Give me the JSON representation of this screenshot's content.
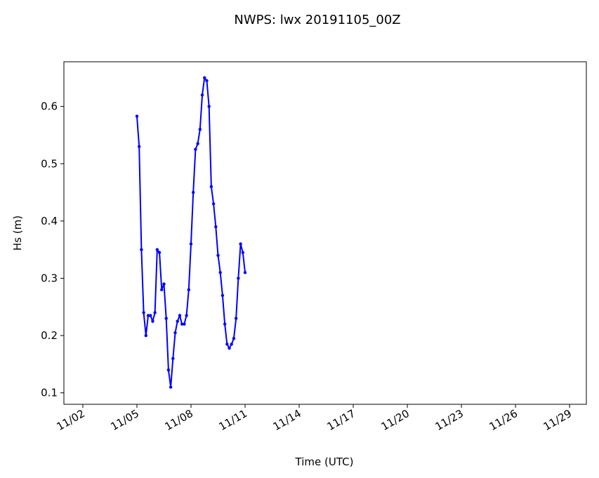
{
  "chart_data": {
    "type": "line",
    "title": "NWPS: lwx 20191105_00Z",
    "x_label": "Time (UTC)",
    "y_label": "Hs (m)",
    "x": [
      5.0,
      5.125,
      5.25,
      5.375,
      5.5,
      5.625,
      5.75,
      5.875,
      6.0,
      6.125,
      6.25,
      6.375,
      6.5,
      6.625,
      6.75,
      6.875,
      7.0,
      7.125,
      7.25,
      7.375,
      7.5,
      7.625,
      7.75,
      7.875,
      8.0,
      8.125,
      8.25,
      8.375,
      8.5,
      8.625,
      8.75,
      8.875,
      9.0,
      9.125,
      9.25,
      9.375,
      9.5,
      9.625,
      9.75,
      9.875,
      10.0,
      10.125,
      10.25,
      10.375,
      10.5,
      10.625,
      10.75,
      10.875,
      11.0
    ],
    "series": [
      {
        "name": "Hs",
        "color": "#0000ff",
        "values": [
          0.583,
          0.53,
          0.35,
          0.24,
          0.2,
          0.235,
          0.235,
          0.225,
          0.24,
          0.35,
          0.345,
          0.28,
          0.29,
          0.23,
          0.14,
          0.11,
          0.16,
          0.205,
          0.225,
          0.235,
          0.22,
          0.22,
          0.235,
          0.28,
          0.36,
          0.45,
          0.525,
          0.535,
          0.56,
          0.62,
          0.65,
          0.645,
          0.6,
          0.46,
          0.43,
          0.39,
          0.34,
          0.31,
          0.27,
          0.22,
          0.185,
          0.178,
          0.185,
          0.195,
          0.23,
          0.3,
          0.36,
          0.345,
          0.31
        ]
      }
    ],
    "xlim": [
      0.95,
      29.93
    ],
    "xticks": [
      {
        "value": 2,
        "label": "11/02"
      },
      {
        "value": 5,
        "label": "11/05"
      },
      {
        "value": 8,
        "label": "11/08"
      },
      {
        "value": 11,
        "label": "11/11"
      },
      {
        "value": 14,
        "label": "11/14"
      },
      {
        "value": 17,
        "label": "11/17"
      },
      {
        "value": 20,
        "label": "11/20"
      },
      {
        "value": 23,
        "label": "11/23"
      },
      {
        "value": 26,
        "label": "11/26"
      },
      {
        "value": 29,
        "label": "11/29"
      }
    ],
    "ylim": [
      0.08,
      0.678
    ],
    "yticks": [
      0.1,
      0.2,
      0.3,
      0.4,
      0.5,
      0.6
    ]
  }
}
